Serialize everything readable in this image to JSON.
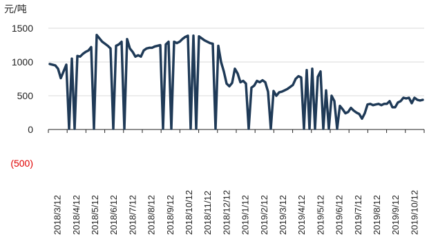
{
  "chart_data": {
    "type": "line",
    "unit_label": "元/吨",
    "y_ticks": [
      {
        "value": 1500,
        "label": "1500"
      },
      {
        "value": 1000,
        "label": "1000"
      },
      {
        "value": 500,
        "label": "500"
      },
      {
        "value": 0,
        "label": "0"
      },
      {
        "value": -500,
        "label": "(500)"
      }
    ],
    "ylim": [
      -500,
      1500
    ],
    "grid": true,
    "colors": {
      "series": "#1f3a57",
      "grid": "#d9d9d9",
      "axis": "#222222",
      "negative_tick": "#e00000"
    },
    "x_ticks": [
      "2018/3/12",
      "2018/4/12",
      "2018/5/12",
      "2018/6/12",
      "2018/7/12",
      "2018/8/12",
      "2018/9/12",
      "2018/10/12",
      "2018/11/12",
      "2018/12/12",
      "2019/1/12",
      "2019/2/12",
      "2019/3/12",
      "2019/4/12",
      "2019/5/12",
      "2019/6/12",
      "2019/7/12",
      "2019/8/12",
      "2019/9/12",
      "2019/10/12"
    ],
    "series": [
      {
        "values": [
          [
            0,
            970
          ],
          [
            1,
            960
          ],
          [
            2,
            950
          ],
          [
            3,
            900
          ],
          [
            4,
            760
          ],
          [
            5,
            860
          ],
          [
            6,
            960
          ],
          [
            7,
            10
          ],
          [
            8,
            1050
          ],
          [
            9,
            10
          ],
          [
            10,
            1090
          ],
          [
            11,
            1080
          ],
          [
            12,
            1120
          ],
          [
            13,
            1150
          ],
          [
            14,
            1170
          ],
          [
            15,
            1220
          ],
          [
            16,
            10
          ],
          [
            17,
            1400
          ],
          [
            18,
            1350
          ],
          [
            19,
            1300
          ],
          [
            20,
            1270
          ],
          [
            21,
            1240
          ],
          [
            22,
            1200
          ],
          [
            23,
            10
          ],
          [
            24,
            1240
          ],
          [
            25,
            1260
          ],
          [
            26,
            1300
          ],
          [
            27,
            10
          ],
          [
            28,
            1340
          ],
          [
            29,
            1200
          ],
          [
            30,
            1150
          ],
          [
            31,
            1080
          ],
          [
            32,
            1100
          ],
          [
            33,
            1080
          ],
          [
            34,
            1170
          ],
          [
            35,
            1200
          ],
          [
            36,
            1210
          ],
          [
            37,
            1210
          ],
          [
            38,
            1230
          ],
          [
            39,
            1240
          ],
          [
            40,
            1250
          ],
          [
            41,
            10
          ],
          [
            42,
            1260
          ],
          [
            43,
            1300
          ],
          [
            44,
            10
          ],
          [
            45,
            1300
          ],
          [
            46,
            1280
          ],
          [
            47,
            1300
          ],
          [
            48,
            1340
          ],
          [
            49,
            1370
          ],
          [
            50,
            1390
          ],
          [
            51,
            10
          ],
          [
            52,
            1390
          ],
          [
            53,
            10
          ],
          [
            54,
            1380
          ],
          [
            55,
            1350
          ],
          [
            56,
            1320
          ],
          [
            57,
            1300
          ],
          [
            58,
            1280
          ],
          [
            59,
            1270
          ],
          [
            60,
            10
          ],
          [
            61,
            1240
          ],
          [
            62,
            1000
          ],
          [
            63,
            860
          ],
          [
            64,
            680
          ],
          [
            65,
            640
          ],
          [
            66,
            690
          ],
          [
            67,
            900
          ],
          [
            68,
            830
          ],
          [
            69,
            700
          ],
          [
            70,
            720
          ],
          [
            71,
            680
          ],
          [
            72,
            10
          ],
          [
            73,
            620
          ],
          [
            74,
            650
          ],
          [
            75,
            720
          ],
          [
            76,
            700
          ],
          [
            77,
            730
          ],
          [
            78,
            700
          ],
          [
            79,
            560
          ],
          [
            80,
            10
          ],
          [
            81,
            570
          ],
          [
            82,
            500
          ],
          [
            83,
            550
          ],
          [
            84,
            560
          ],
          [
            85,
            580
          ],
          [
            86,
            600
          ],
          [
            87,
            630
          ],
          [
            88,
            660
          ],
          [
            89,
            750
          ],
          [
            90,
            790
          ],
          [
            91,
            770
          ],
          [
            92,
            10
          ],
          [
            93,
            880
          ],
          [
            94,
            10
          ],
          [
            95,
            900
          ],
          [
            96,
            10
          ],
          [
            97,
            780
          ],
          [
            98,
            860
          ],
          [
            99,
            10
          ],
          [
            100,
            580
          ],
          [
            101,
            10
          ],
          [
            102,
            500
          ],
          [
            103,
            420
          ],
          [
            104,
            10
          ],
          [
            105,
            350
          ],
          [
            106,
            300
          ],
          [
            107,
            240
          ],
          [
            108,
            260
          ],
          [
            109,
            320
          ],
          [
            110,
            280
          ],
          [
            111,
            250
          ],
          [
            112,
            230
          ],
          [
            113,
            160
          ],
          [
            114,
            240
          ],
          [
            115,
            370
          ],
          [
            116,
            380
          ],
          [
            117,
            360
          ],
          [
            118,
            370
          ],
          [
            119,
            380
          ],
          [
            120,
            360
          ],
          [
            121,
            380
          ],
          [
            122,
            380
          ],
          [
            123,
            420
          ],
          [
            124,
            330
          ],
          [
            125,
            330
          ],
          [
            126,
            400
          ],
          [
            127,
            420
          ],
          [
            128,
            470
          ],
          [
            129,
            460
          ],
          [
            130,
            470
          ],
          [
            131,
            390
          ],
          [
            132,
            470
          ],
          [
            133,
            440
          ],
          [
            134,
            430
          ],
          [
            135,
            440
          ]
        ]
      }
    ]
  }
}
